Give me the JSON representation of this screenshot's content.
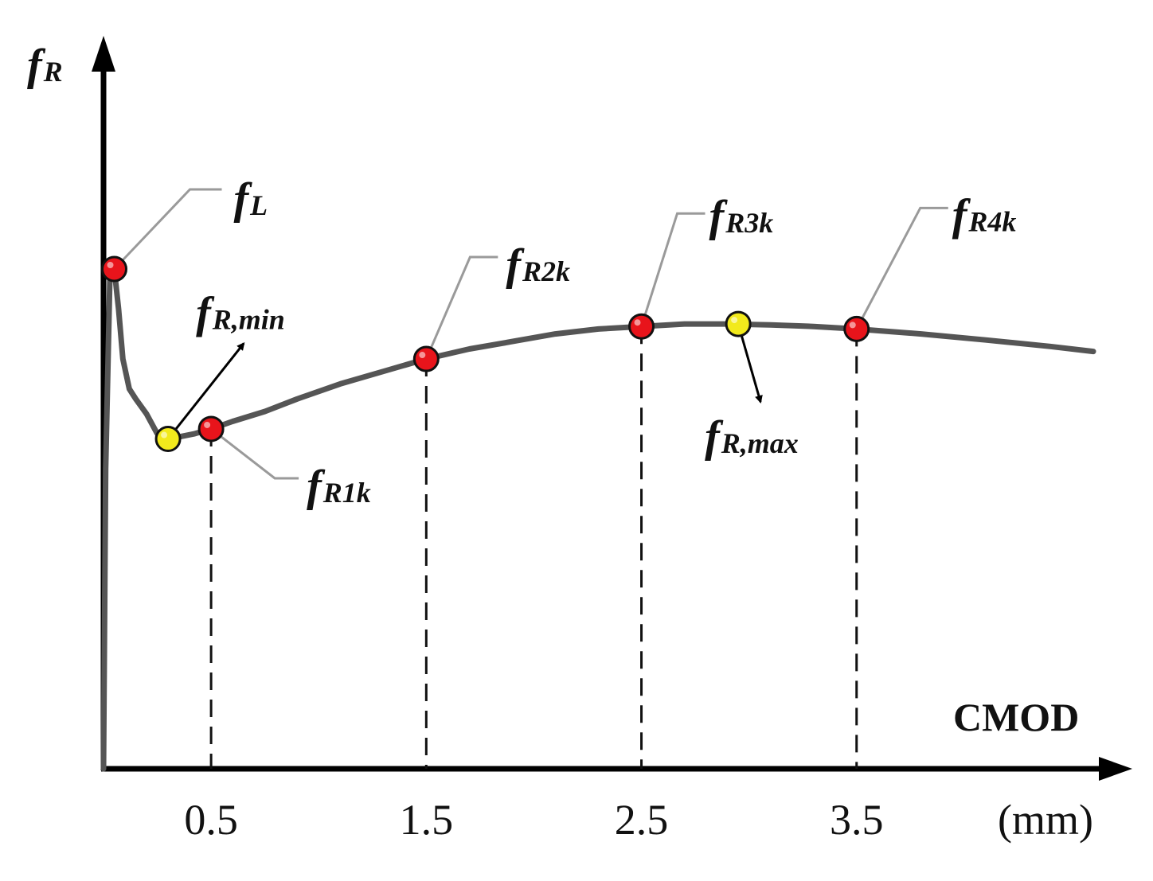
{
  "chart_data": {
    "type": "line",
    "xlabel": "CMOD",
    "x_unit": "(mm)",
    "ylabel": {
      "main": "f",
      "sub": "R"
    },
    "xlim": [
      0,
      4.7
    ],
    "ylim": [
      0,
      1
    ],
    "x_ticks": [
      0.5,
      1.5,
      2.5,
      3.5
    ],
    "x_tick_labels": [
      "0.5",
      "1.5",
      "2.5",
      "3.5"
    ],
    "grid": false,
    "series": [
      {
        "x": [
          0,
          0.01,
          0.03,
          0.05,
          0.07,
          0.09,
          0.12,
          0.15,
          0.2,
          0.25,
          0.3,
          0.36,
          0.42,
          0.5,
          0.6,
          0.75,
          0.9,
          1.1,
          1.3,
          1.5,
          1.7,
          1.9,
          2.1,
          2.3,
          2.5,
          2.7,
          2.9,
          3.1,
          3.3,
          3.5,
          3.8,
          4.1,
          4.4,
          4.6
        ],
        "y": [
          0,
          0.6,
          0.99,
          1.0,
          0.92,
          0.82,
          0.76,
          0.74,
          0.71,
          0.67,
          0.66,
          0.665,
          0.67,
          0.68,
          0.695,
          0.715,
          0.74,
          0.77,
          0.795,
          0.82,
          0.84,
          0.855,
          0.87,
          0.88,
          0.885,
          0.89,
          0.89,
          0.888,
          0.885,
          0.88,
          0.87,
          0.858,
          0.845,
          0.835
        ]
      }
    ],
    "colors": {
      "curve": "#555555",
      "key_point": "#e8141b",
      "extreme_point": "#f2ea1c",
      "axis": "#000000"
    },
    "key_points": [
      {
        "label": "f",
        "sub": "L",
        "x": 0.05,
        "y": 1.0,
        "type": "key"
      },
      {
        "label": "f",
        "sub": "R1k",
        "x": 0.5,
        "y": 0.68,
        "type": "key"
      },
      {
        "label": "f",
        "sub": "R2k",
        "x": 1.5,
        "y": 0.82,
        "type": "key"
      },
      {
        "label": "f",
        "sub": "R3k",
        "x": 2.5,
        "y": 0.885,
        "type": "key"
      },
      {
        "label": "f",
        "sub": "R4k",
        "x": 3.5,
        "y": 0.88,
        "type": "key"
      },
      {
        "label": "f",
        "sub": "R,min",
        "x": 0.3,
        "y": 0.66,
        "type": "extreme"
      },
      {
        "label": "f",
        "sub": "R,max",
        "x": 2.95,
        "y": 0.89,
        "type": "extreme"
      }
    ]
  }
}
